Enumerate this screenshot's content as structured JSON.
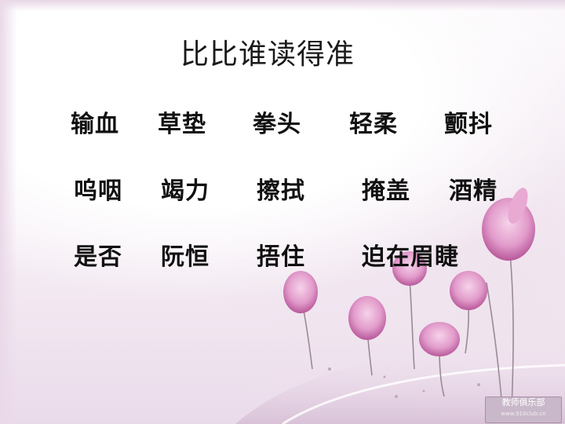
{
  "slide": {
    "title": "比比谁读得准",
    "rows": [
      [
        "输血",
        "草垫",
        "拳头",
        "轻柔",
        "颤抖"
      ],
      [
        "呜咽",
        "竭力",
        "擦拭",
        "掩盖",
        "酒精"
      ],
      [
        "是否",
        "阮恒",
        "捂住",
        "迫在眉睫"
      ]
    ],
    "watermark": {
      "name": "教师俱乐部",
      "url": "www.910club.cn"
    }
  },
  "colors": {
    "petal": "#e4a0cc",
    "petal_dark": "#c46aa8",
    "stem": "#9c8a96"
  }
}
